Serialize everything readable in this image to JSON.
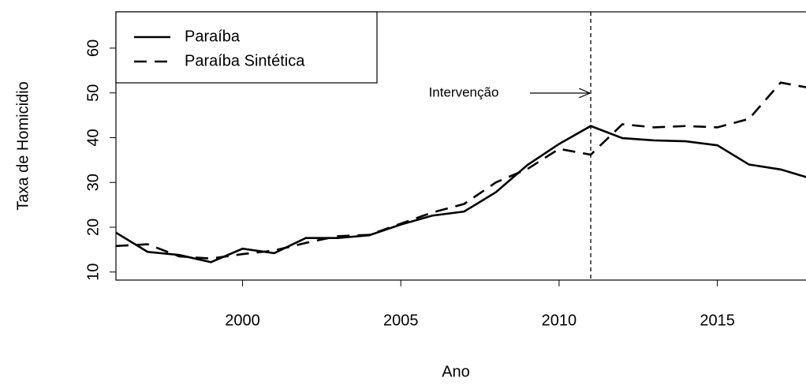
{
  "chart_data": {
    "type": "line",
    "x_label": "Ano",
    "y_label": "Taxa de Homicidio",
    "x": [
      1996,
      1997,
      1998,
      1999,
      2000,
      2001,
      2002,
      2003,
      2004,
      2005,
      2006,
      2007,
      2008,
      2009,
      2010,
      2011,
      2012,
      2013,
      2014,
      2015,
      2016,
      2017,
      2018
    ],
    "series": [
      {
        "name": "Paraíba",
        "color": "#000000",
        "dash": "solid",
        "values": [
          18.8,
          14.5,
          13.8,
          12.2,
          15.2,
          14.2,
          17.6,
          17.6,
          18.2,
          20.6,
          22.6,
          23.5,
          27.8,
          33.9,
          38.6,
          42.6,
          39.9,
          39.4,
          39.2,
          38.3,
          34.0,
          32.9,
          30.8
        ]
      },
      {
        "name": "Paraíba Sintética",
        "color": "#000000",
        "dash": "dashed",
        "values": [
          15.8,
          16.2,
          13.5,
          13.0,
          14.0,
          14.8,
          16.5,
          18.0,
          18.3,
          20.8,
          23.3,
          25.2,
          30.0,
          33.0,
          37.5,
          36.2,
          43.0,
          42.3,
          42.6,
          42.3,
          44.2,
          52.3,
          51.0
        ]
      }
    ],
    "xlim": [
      1996,
      2017.8
    ],
    "ylim": [
      8.2,
      68.1
    ],
    "xticks": [
      2000,
      2005,
      2010,
      2015
    ],
    "yticks": [
      10,
      20,
      30,
      40,
      50,
      60
    ],
    "intervention_x": 2011,
    "annotation": "Intervenção",
    "legend": "top-left"
  }
}
